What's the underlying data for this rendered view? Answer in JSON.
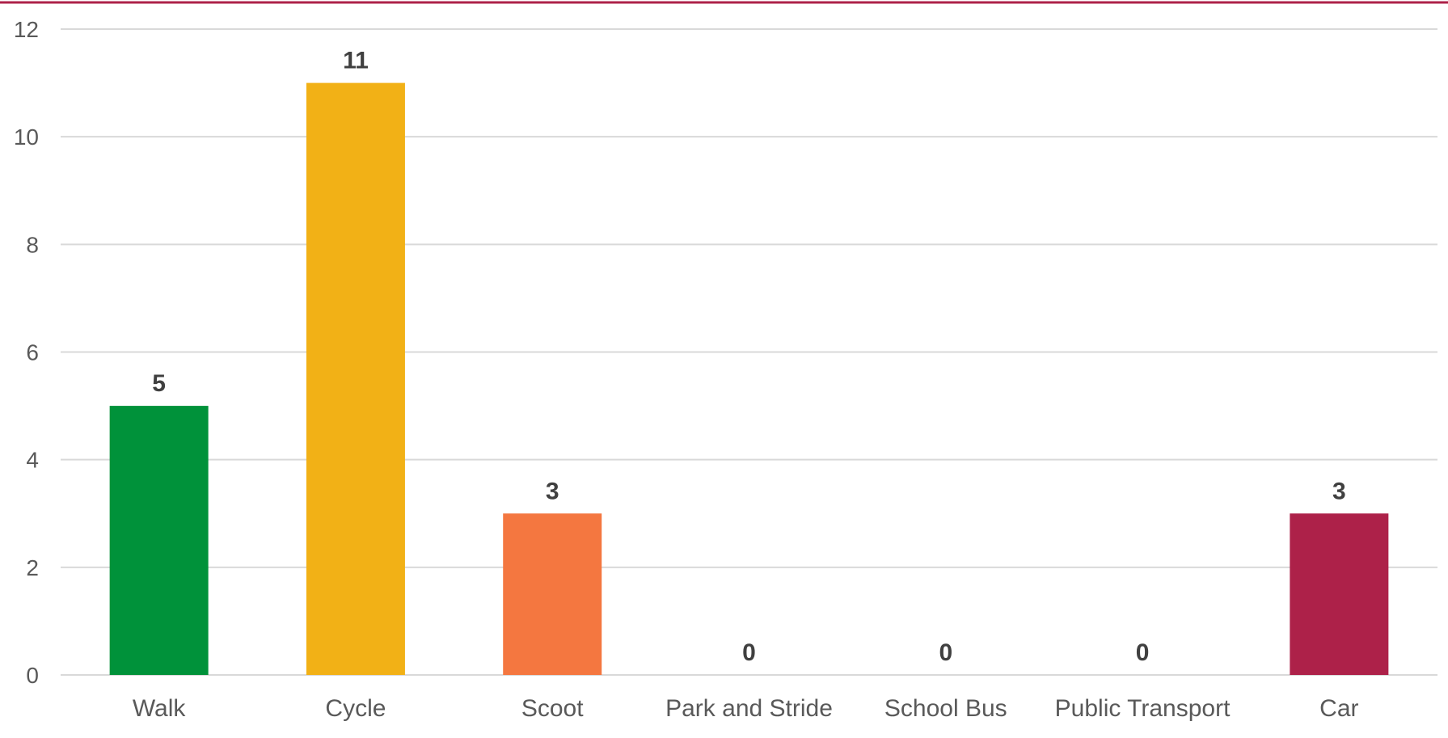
{
  "chart_data": {
    "type": "bar",
    "title": "",
    "xlabel": "",
    "ylabel": "",
    "categories": [
      "Walk",
      "Cycle",
      "Scoot",
      "Park and Stride",
      "School Bus",
      "Public Transport",
      "Car"
    ],
    "values": [
      5,
      11,
      3,
      0,
      0,
      0,
      3
    ],
    "colors": [
      "#00923a",
      "#f2b116",
      "#f47740",
      "#cccccc",
      "#cccccc",
      "#cccccc",
      "#ad2149"
    ],
    "ylim": [
      0,
      12
    ],
    "yticks": [
      0,
      2,
      4,
      6,
      8,
      10,
      12
    ],
    "grid": true,
    "legend": "none",
    "data_labels": true
  },
  "accent_color": "#ad2149"
}
